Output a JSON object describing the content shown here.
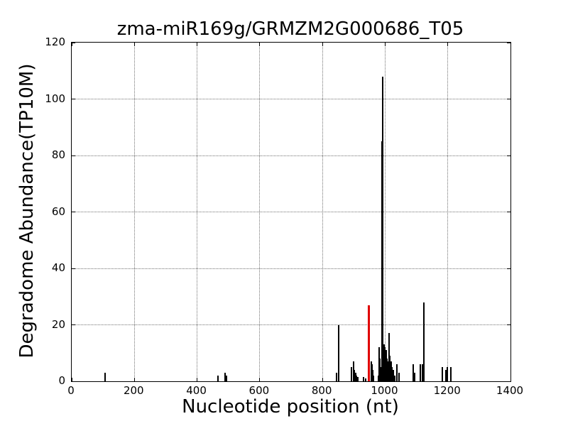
{
  "chart_data": {
    "type": "bar",
    "title": "zma-miR169g/GRMZM2G000686_T05",
    "xlabel": "Nucleotide position (nt)",
    "ylabel": "Degradome Abundance(TP10M)",
    "xlim": [
      0,
      1400
    ],
    "ylim": [
      0,
      120
    ],
    "xticks": [
      0,
      200,
      400,
      600,
      800,
      1000,
      1200,
      1400
    ],
    "yticks": [
      0,
      20,
      40,
      60,
      80,
      100,
      120
    ],
    "grid": true,
    "grid_linestyle": "dotted",
    "legend": "none",
    "colors": {
      "spike": "#000000",
      "highlight": "#e00000",
      "frame": "#000000",
      "background": "#ffffff"
    },
    "series": [
      {
        "name": "degradome-abundance",
        "color": "#000000",
        "points": [
          [
            107,
            3
          ],
          [
            466,
            2
          ],
          [
            489,
            3
          ],
          [
            493,
            2
          ],
          [
            845,
            3
          ],
          [
            851,
            20
          ],
          [
            893,
            5
          ],
          [
            899,
            7
          ],
          [
            902,
            4
          ],
          [
            905,
            3
          ],
          [
            908,
            2
          ],
          [
            912,
            1.5
          ],
          [
            932,
            1.5
          ],
          [
            938,
            1
          ],
          [
            956,
            7
          ],
          [
            958,
            6
          ],
          [
            960,
            4
          ],
          [
            963,
            2
          ],
          [
            978,
            2
          ],
          [
            981,
            12
          ],
          [
            983,
            8
          ],
          [
            985,
            5
          ],
          [
            990,
            85
          ],
          [
            992,
            108
          ],
          [
            995,
            6
          ],
          [
            997,
            13
          ],
          [
            1000,
            12
          ],
          [
            1003,
            11
          ],
          [
            1005,
            8
          ],
          [
            1008,
            7
          ],
          [
            1012,
            17
          ],
          [
            1015,
            9
          ],
          [
            1019,
            7
          ],
          [
            1022,
            5
          ],
          [
            1026,
            4
          ],
          [
            1030,
            2
          ],
          [
            1038,
            6
          ],
          [
            1044,
            3
          ],
          [
            1089,
            6
          ],
          [
            1093,
            3
          ],
          [
            1112,
            6
          ],
          [
            1118,
            6
          ],
          [
            1124,
            28
          ],
          [
            1182,
            5
          ],
          [
            1193,
            4
          ],
          [
            1198,
            5
          ],
          [
            1210,
            5
          ]
        ]
      },
      {
        "name": "cleavage-site-highlight",
        "color": "#e00000",
        "points": [
          [
            949,
            27
          ]
        ]
      }
    ]
  }
}
